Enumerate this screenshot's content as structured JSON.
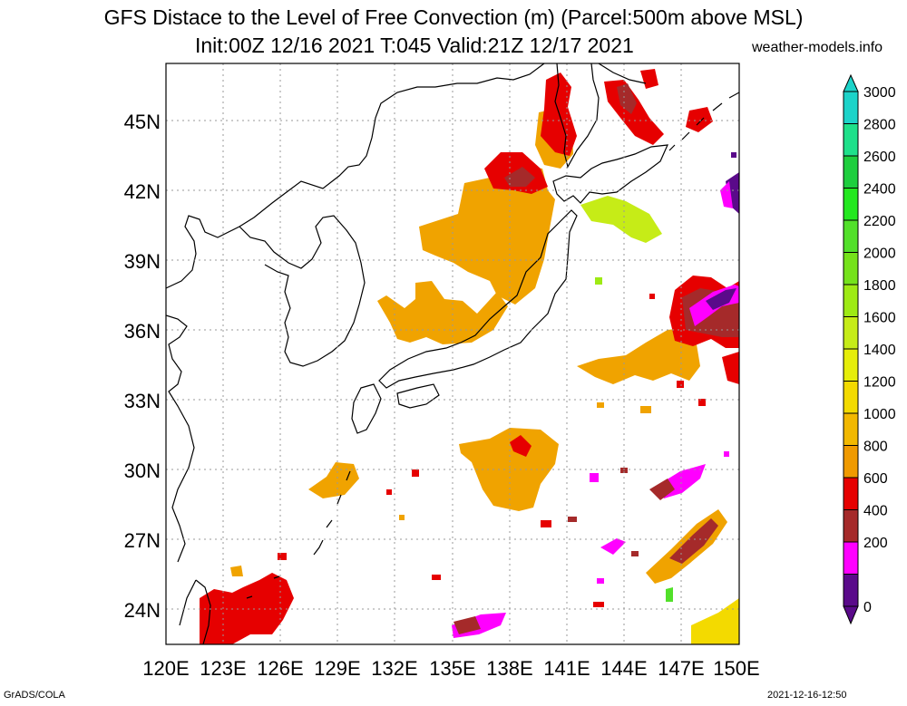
{
  "title": {
    "line1": "GFS Distace to the Level of Free Convection (m) (Parcel:500m above MSL)",
    "line2": "Init:00Z 12/16 2021 T:045 Valid:21Z 12/17 2021",
    "site": "weather-models.info"
  },
  "footer": {
    "left": "GrADS/COLA",
    "right": "2021-12-16-12:50"
  },
  "map": {
    "lon_range": [
      120,
      150
    ],
    "lat_range": [
      22.5,
      47.5
    ],
    "lat_labels": [
      "45N",
      "42N",
      "39N",
      "36N",
      "33N",
      "30N",
      "27N",
      "24N"
    ],
    "lat_values": [
      45,
      42,
      39,
      36,
      33,
      30,
      27,
      24
    ],
    "lon_labels": [
      "120E",
      "123E",
      "126E",
      "129E",
      "132E",
      "135E",
      "138E",
      "141E",
      "144E",
      "147E",
      "150E"
    ],
    "lon_values": [
      120,
      123,
      126,
      129,
      132,
      135,
      138,
      141,
      144,
      147,
      150
    ],
    "grid": "dotted"
  },
  "colorbar": {
    "labels": [
      "3000",
      "2800",
      "2600",
      "2400",
      "2200",
      "2000",
      "1800",
      "1600",
      "1400",
      "1200",
      "1000",
      "800",
      "600",
      "400",
      "200",
      "0"
    ],
    "colors": [
      "#1cd3c9",
      "#1ee08a",
      "#1ece3e",
      "#23e81f",
      "#52e02a",
      "#75e21b",
      "#9eea14",
      "#c6ec17",
      "#e6ee0a",
      "#f3da00",
      "#f2b800",
      "#f09a00",
      "#e60000",
      "#a52a2a",
      "#ff00ff",
      "#5a0a8a"
    ]
  }
}
